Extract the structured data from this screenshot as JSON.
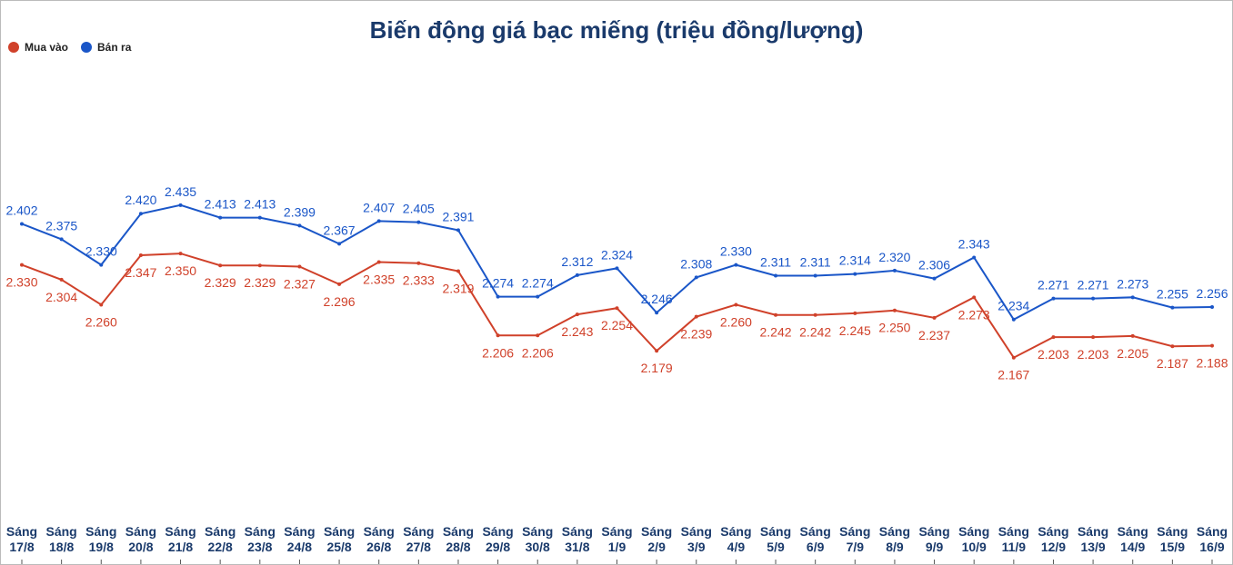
{
  "chart_data": {
    "type": "line",
    "title": "Biến động giá bạc miếng (triệu đồng/lượng)",
    "categories": [
      "Sáng 17/8",
      "Sáng 18/8",
      "Sáng 19/8",
      "Sáng 20/8",
      "Sáng 21/8",
      "Sáng 22/8",
      "Sáng 23/8",
      "Sáng 24/8",
      "Sáng 25/8",
      "Sáng 26/8",
      "Sáng 27/8",
      "Sáng 28/8",
      "Sáng 29/8",
      "Sáng 30/8",
      "Sáng 31/8",
      "Sáng 1/9",
      "Sáng 2/9",
      "Sáng 3/9",
      "Sáng 4/9",
      "Sáng 5/9",
      "Sáng 6/9",
      "Sáng 7/9",
      "Sáng 8/9",
      "Sáng 9/9",
      "Sáng 10/9",
      "Sáng 11/9",
      "Sáng 12/9",
      "Sáng 13/9",
      "Sáng 14/9",
      "Sáng 15/9",
      "Sáng 16/9"
    ],
    "series": [
      {
        "name": "Mua vào",
        "color": "#d0412a",
        "values": [
          2.33,
          2.304,
          2.26,
          2.347,
          2.35,
          2.329,
          2.329,
          2.327,
          2.296,
          2.335,
          2.333,
          2.319,
          2.206,
          2.206,
          2.243,
          2.254,
          2.179,
          2.239,
          2.26,
          2.242,
          2.242,
          2.245,
          2.25,
          2.237,
          2.273,
          2.167,
          2.203,
          2.203,
          2.205,
          2.187,
          2.188
        ],
        "value_labels": [
          "2.330",
          "2.304",
          "2.260",
          "2.347",
          "2.350",
          "2.329",
          "2.329",
          "2.327",
          "2.296",
          "2.335",
          "2.333",
          "2.319",
          "2.206",
          "2.206",
          "2.243",
          "2.254",
          "2.179",
          "2.239",
          "2.260",
          "2.242",
          "2.242",
          "2.245",
          "2.250",
          "2.237",
          "2.273",
          "2.167",
          "2.203",
          "2.203",
          "2.205",
          "2.187",
          "2.188"
        ]
      },
      {
        "name": "Bán ra",
        "color": "#1a56c8",
        "values": [
          2.402,
          2.375,
          2.33,
          2.42,
          2.435,
          2.413,
          2.413,
          2.399,
          2.367,
          2.407,
          2.405,
          2.391,
          2.274,
          2.274,
          2.312,
          2.324,
          2.246,
          2.308,
          2.33,
          2.311,
          2.311,
          2.314,
          2.32,
          2.306,
          2.343,
          2.234,
          2.271,
          2.271,
          2.273,
          2.255,
          2.256
        ],
        "value_labels": [
          "2.402",
          "2.375",
          "2.330",
          "2.420",
          "2.435",
          "2.413",
          "2.413",
          "2.399",
          "2.367",
          "2.407",
          "2.405",
          "2.391",
          "2.274",
          "2.274",
          "2.312",
          "2.324",
          "2.246",
          "2.308",
          "2.330",
          "2.311",
          "2.311",
          "2.314",
          "2.320",
          "2.306",
          "2.343",
          "2.234",
          "2.271",
          "2.271",
          "2.273",
          "2.255",
          "2.256"
        ]
      }
    ],
    "ylim": [
      1.9,
      2.73
    ]
  }
}
